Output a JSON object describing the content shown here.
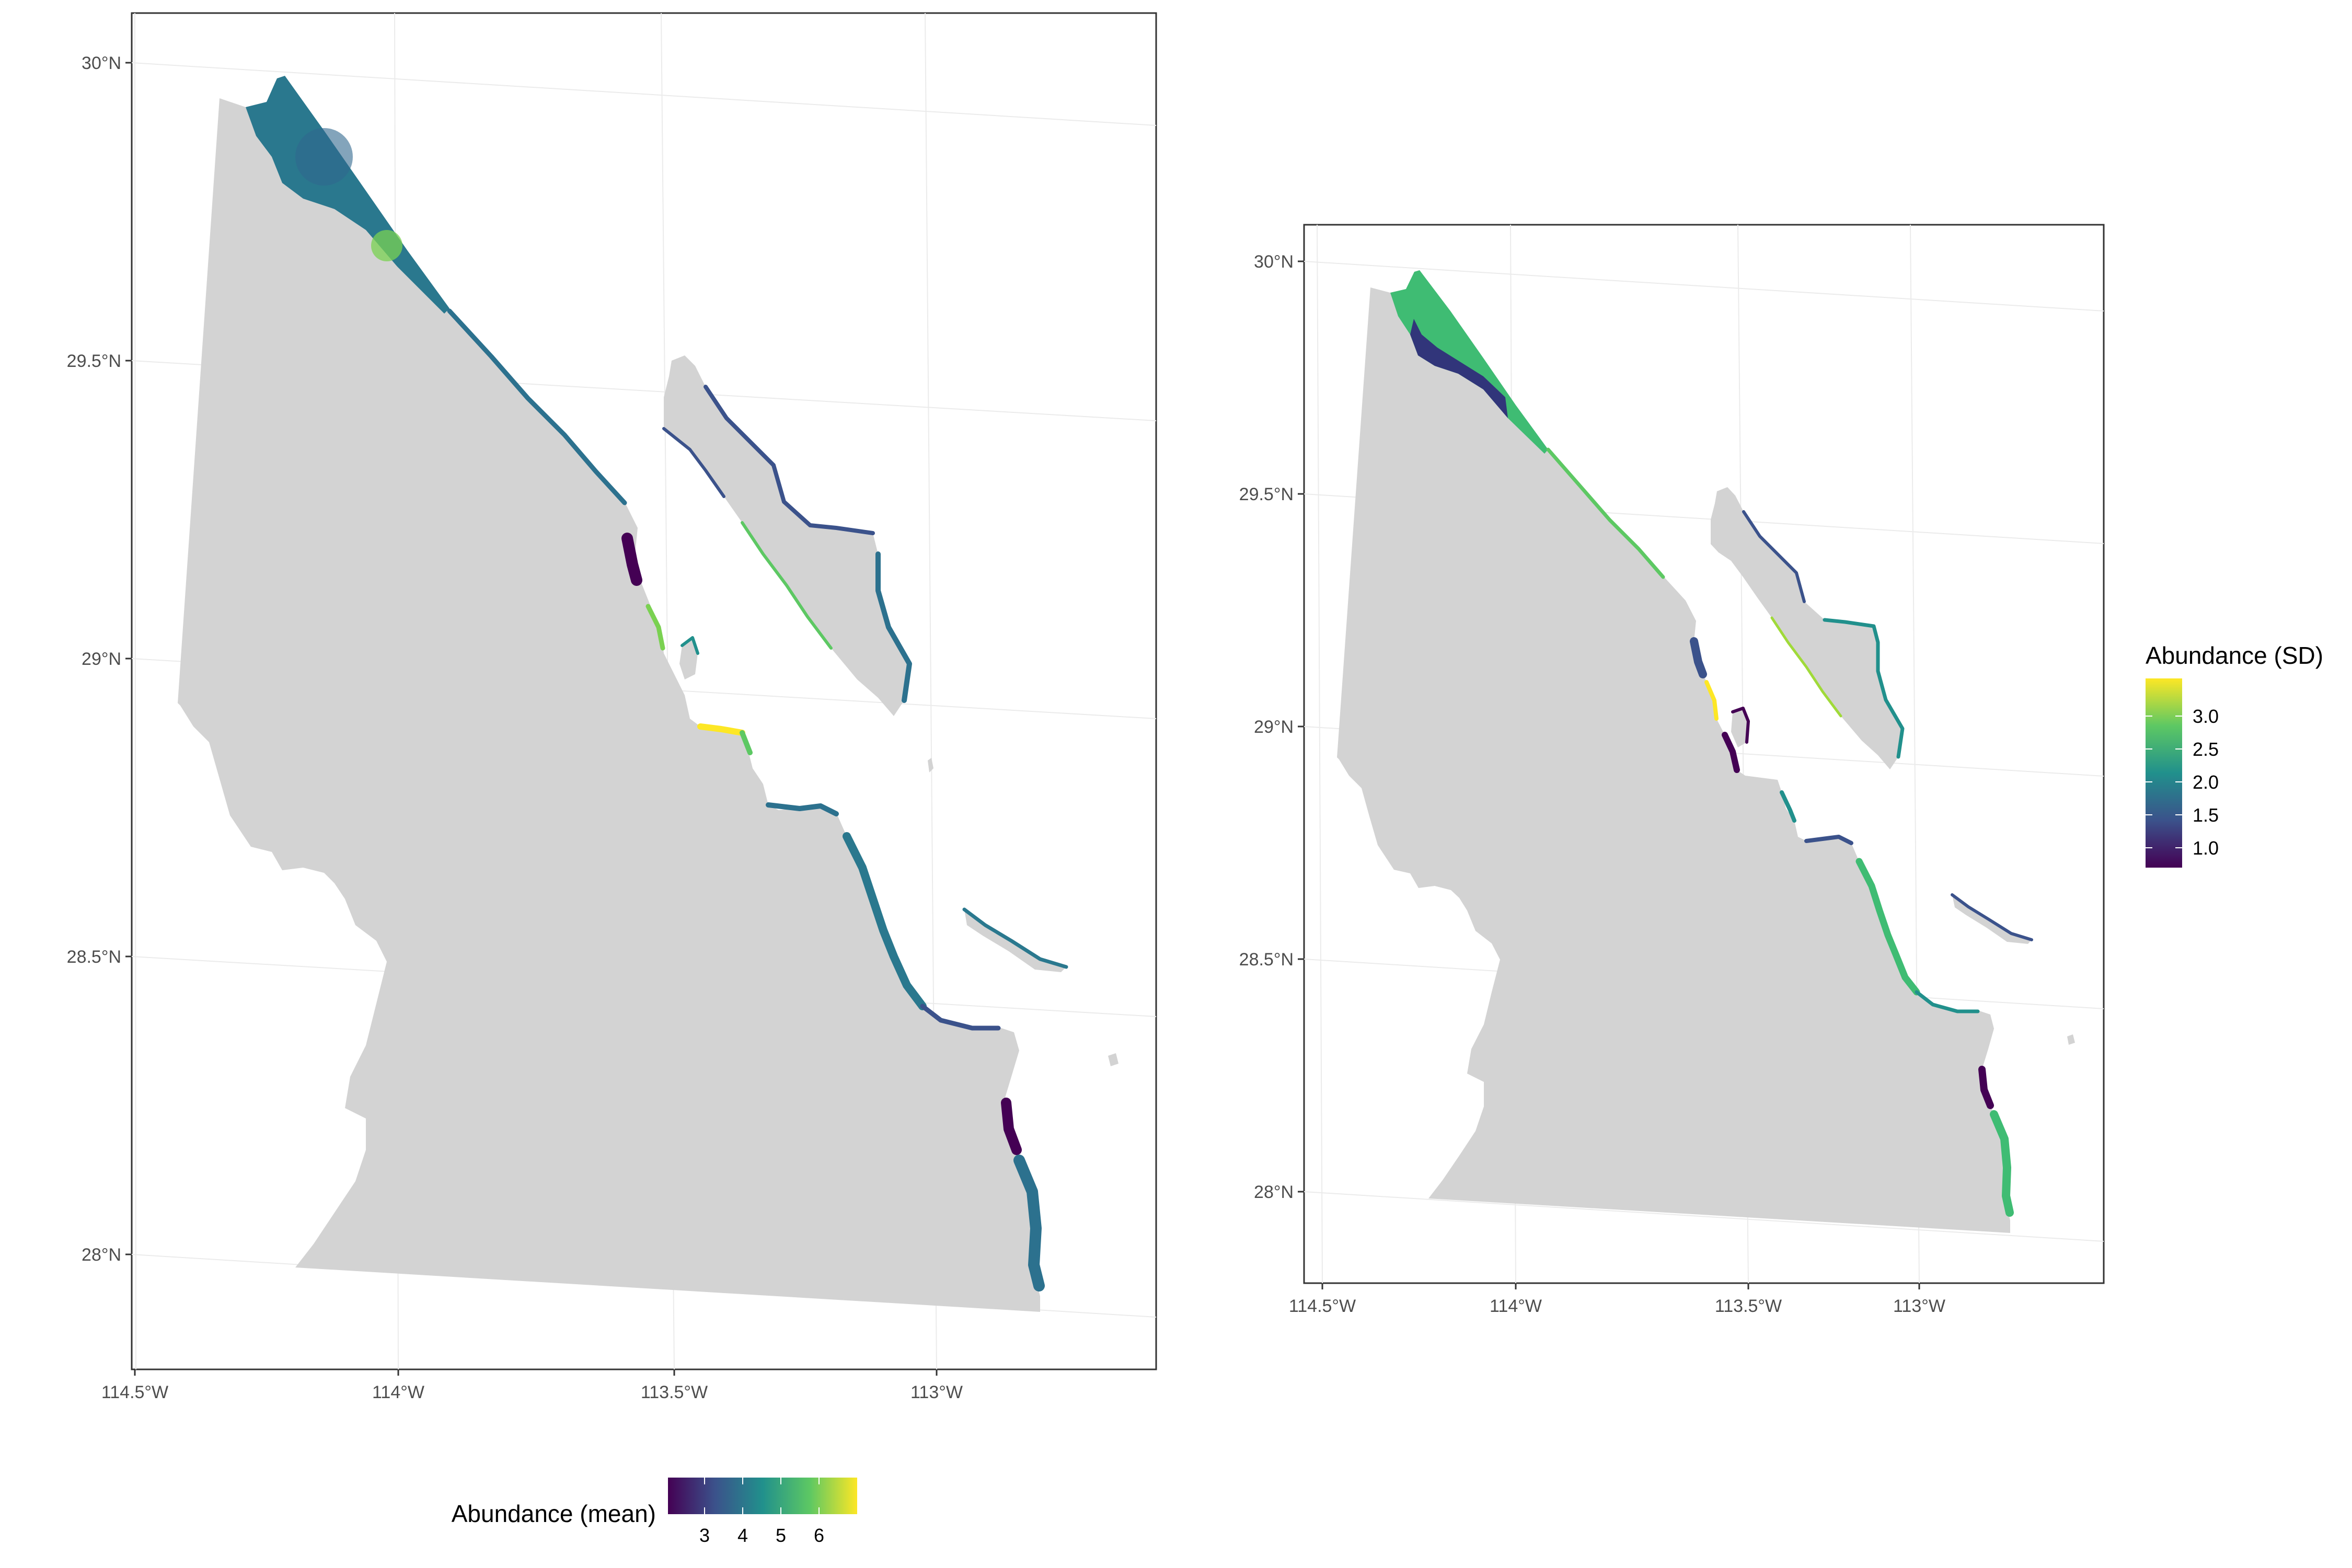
{
  "maps": [
    {
      "id": "mean",
      "y_ticks": [
        "30°N",
        "29.5°N",
        "29°N",
        "28.5°N",
        "28°N"
      ],
      "x_ticks": [
        "114.5°W",
        "114°W",
        "113.5°W",
        "113°W"
      ],
      "legend": {
        "title": "Abundance (mean)",
        "orientation": "horizontal",
        "position": "bottom",
        "ticks": [
          "3",
          "4",
          "5",
          "6"
        ],
        "range": [
          2.2,
          7.1
        ]
      }
    },
    {
      "id": "sd",
      "y_ticks": [
        "30°N",
        "29.5°N",
        "29°N",
        "28.5°N",
        "28°N"
      ],
      "x_ticks": [
        "114.5°W",
        "114°W",
        "113.5°W",
        "113°W"
      ],
      "legend": {
        "title": "Abundance (SD)",
        "orientation": "vertical",
        "position": "right",
        "ticks": [
          "3.0",
          "2.5",
          "2.0",
          "1.5",
          "1.0"
        ],
        "range": [
          0.6,
          3.6
        ]
      }
    }
  ],
  "colors": {
    "land": "#d3d3d3",
    "viridis": [
      "#440154",
      "#3b528b",
      "#21908c",
      "#5dc863",
      "#fde725"
    ]
  }
}
